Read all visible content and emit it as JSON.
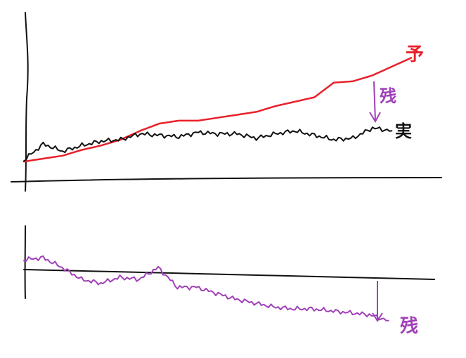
{
  "chart_data": [
    {
      "type": "line",
      "title": "",
      "xlabel": "",
      "ylabel": "",
      "grid": false,
      "xlim": [
        0,
        20
      ],
      "ylim": [
        0,
        10
      ],
      "series": [
        {
          "name": "予",
          "color": "#e8202a",
          "x": [
            0,
            1,
            2,
            3,
            4,
            5,
            6,
            7,
            8,
            9,
            10,
            11,
            12,
            13,
            14,
            15,
            16,
            17,
            18,
            19,
            20
          ],
          "values": [
            1.1,
            1.3,
            1.5,
            1.9,
            2.2,
            2.6,
            3.2,
            3.7,
            3.9,
            3.9,
            4.1,
            4.3,
            4.5,
            4.9,
            5.2,
            5.5,
            6.5,
            6.6,
            7.0,
            7.6,
            8.2
          ]
        },
        {
          "name": "実",
          "color": "#111111",
          "x": [
            0,
            1,
            2,
            3,
            4,
            5,
            6,
            7,
            8,
            9,
            10,
            11,
            12,
            13,
            14,
            15,
            16,
            17,
            18,
            19
          ],
          "values": [
            1.2,
            2.3,
            1.8,
            2.2,
            2.5,
            2.6,
            3.0,
            2.9,
            2.8,
            3.1,
            3.0,
            3.0,
            2.7,
            3.0,
            3.2,
            2.9,
            2.6,
            2.7,
            3.4,
            3.2
          ]
        }
      ],
      "annotations": [
        {
          "text": "予",
          "color": "#e8202a"
        },
        {
          "text": "実",
          "color": "#111111"
        },
        {
          "text": "残",
          "color": "#a040b8"
        }
      ]
    },
    {
      "type": "line",
      "title": "",
      "xlabel": "",
      "ylabel": "",
      "grid": false,
      "xlim": [
        0,
        20
      ],
      "ylim": [
        -3,
        1
      ],
      "baseline": [
        0.0,
        -0.1,
        -0.2,
        -0.3,
        -0.4,
        -0.5
      ],
      "series": [
        {
          "name": "残",
          "color": "#a040b8",
          "x": [
            0,
            1,
            2,
            3,
            4,
            5,
            6,
            7,
            8,
            9,
            10,
            11,
            12,
            13,
            14,
            15,
            16,
            17,
            18,
            19
          ],
          "values": [
            0.5,
            0.6,
            0.1,
            -0.5,
            -0.7,
            -0.4,
            -0.5,
            0.1,
            -0.9,
            -0.9,
            -1.2,
            -1.5,
            -1.7,
            -1.9,
            -2.0,
            -2.0,
            -2.1,
            -2.2,
            -2.3,
            -2.6
          ]
        }
      ],
      "annotations": [
        {
          "text": "残",
          "color": "#a040b8"
        }
      ]
    }
  ]
}
